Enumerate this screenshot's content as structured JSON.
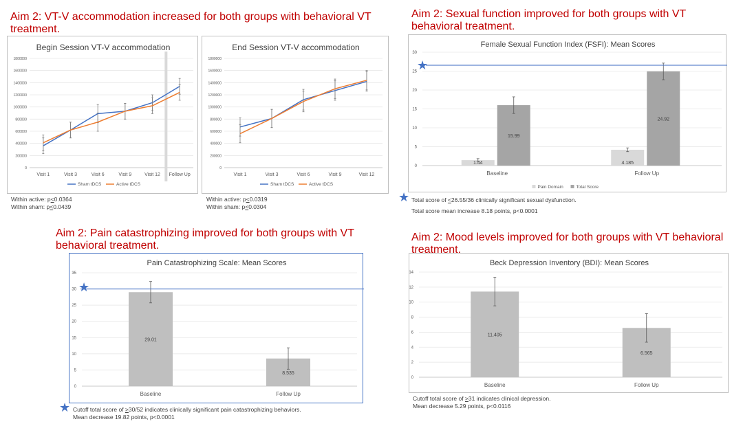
{
  "panels": {
    "vtv": {
      "heading": "Aim 2:   VT-V accommodation increased for both groups with behavioral VT treatment.",
      "notes": [
        {
          "prefix": "Within active:  p",
          "sym": "<",
          "suffix": "0.0364"
        },
        {
          "prefix": "Within sham:  p",
          "sym": "<",
          "suffix": "0.0439"
        },
        {
          "prefix": "Within active: p",
          "sym": "<",
          "suffix": "0.0319"
        },
        {
          "prefix": "Within sham:  p",
          "sym": "<",
          "suffix": "0.0304"
        }
      ]
    },
    "fsfi": {
      "heading": "Aim 2:  Sexual function improved for both groups with VT behavioral treatment.",
      "notes": [
        {
          "prefix": "Total score of ",
          "sym": "<",
          "suffix": "26.55/36 clinically significant sexual dysfunction."
        },
        {
          "prefix": "Total score mean increase 8.18 points, p<0.0001",
          "sym": "",
          "suffix": ""
        }
      ]
    },
    "pcs": {
      "heading": "Aim 2: Pain catastrophizing improved for both groups with VT behavioral treatment.",
      "notes": [
        {
          "prefix": "Cutoff total score of ",
          "sym": ">",
          "suffix": "30/52 indicates clinically significant pain catastrophizing behaviors."
        },
        {
          "prefix": "Mean decrease 19.82 points, p<0.0001",
          "sym": "",
          "suffix": ""
        }
      ]
    },
    "bdi": {
      "heading": "Aim 2:  Mood levels improved for both groups with VT behavioral treatment.",
      "notes": [
        {
          "prefix": "Cutoff total score of ",
          "sym": ">",
          "suffix": "31 indicates clinical depression."
        },
        {
          "prefix": "Mean decrease 5.29 points, p<0.0116",
          "sym": "",
          "suffix": ""
        }
      ]
    },
    "star_glyph": "★"
  },
  "colors": {
    "heading": "#c00000",
    "sham": "#4472c4",
    "active": "#ed7d31",
    "bar_dark": "#a5a5a5",
    "bar_light": "#d9d9d9",
    "ref_line": "#4472c4"
  },
  "chart_data": [
    {
      "id": "begin",
      "type": "line",
      "title": "Begin Session VT-V accommodation",
      "categories": [
        "Visit 1",
        "Visit 3",
        "Visit 6",
        "Visit 9",
        "Visit 12",
        "Follow Up"
      ],
      "ylim": [
        0,
        1800000
      ],
      "yticks": [
        "0",
        "200000",
        "400000",
        "600000",
        "800000",
        "1000000",
        "1200000",
        "1400000",
        "1600000",
        "1800000"
      ],
      "series": [
        {
          "name": "Sham tDCS",
          "values": [
            360000,
            620000,
            890000,
            930000,
            1070000,
            1340000
          ]
        },
        {
          "name": "Active tDCS",
          "values": [
            410000,
            620000,
            750000,
            930000,
            1020000,
            1240000
          ]
        }
      ],
      "error": [
        130000,
        130000,
        150000,
        130000,
        130000,
        130000
      ],
      "legend": "bottom",
      "grid": true
    },
    {
      "id": "end",
      "type": "line",
      "title": "End Session VT-V accommodation",
      "categories": [
        "Visit 1",
        "Visit 3",
        "Visit 6",
        "Visit 9",
        "Visit 12"
      ],
      "ylim": [
        0,
        1800000
      ],
      "yticks": [
        "0",
        "200000",
        "400000",
        "600000",
        "800000",
        "1000000",
        "1200000",
        "1400000",
        "1600000",
        "1800000"
      ],
      "series": [
        {
          "name": "Sham tDCS",
          "values": [
            670000,
            810000,
            1120000,
            1270000,
            1420000
          ]
        },
        {
          "name": "Active tDCS",
          "values": [
            560000,
            810000,
            1090000,
            1300000,
            1440000
          ]
        }
      ],
      "error": [
        150000,
        150000,
        170000,
        160000,
        160000
      ],
      "legend": "bottom",
      "grid": true
    },
    {
      "id": "fsfi",
      "type": "bar",
      "title": "Female Sexual Function Index (FSFI): Mean Scores",
      "categories": [
        "Baseline",
        "Follow Up"
      ],
      "ylim": [
        0,
        30
      ],
      "yticks": [
        "0",
        "5",
        "10",
        "15",
        "20",
        "25",
        "30"
      ],
      "series": [
        {
          "name": "Pain Domain",
          "values": [
            1.44,
            4.185
          ],
          "labels": [
            "1.44",
            "4.185"
          ],
          "error": [
            0.4,
            0.5
          ]
        },
        {
          "name": "Total Score",
          "values": [
            15.99,
            24.92
          ],
          "labels": [
            "15.99",
            "24.92"
          ],
          "error": [
            2.2,
            2.2
          ]
        }
      ],
      "reference": 26.55,
      "legend": "bottom",
      "grid": true
    },
    {
      "id": "pcs",
      "type": "bar",
      "title": "Pain Catastrophizing Scale: Mean Scores",
      "categories": [
        "Baseline",
        "Follow Up"
      ],
      "ylim": [
        0,
        35
      ],
      "yticks": [
        "0",
        "5",
        "10",
        "15",
        "20",
        "25",
        "30",
        "35"
      ],
      "series": [
        {
          "values": [
            29.01,
            8.535
          ],
          "labels": [
            "29.01",
            "8.535"
          ],
          "error": [
            3.3,
            3.3
          ]
        }
      ],
      "reference": 30,
      "grid": true
    },
    {
      "id": "bdi",
      "type": "bar",
      "title": "Beck Depression Inventory (BDI): Mean Scores",
      "categories": [
        "Baseline",
        "Follow Up"
      ],
      "ylim": [
        0,
        14
      ],
      "yticks": [
        "0",
        "2",
        "4",
        "6",
        "8",
        "10",
        "12",
        "14"
      ],
      "series": [
        {
          "values": [
            11.405,
            6.565
          ],
          "labels": [
            "11.405",
            "6.565"
          ],
          "error": [
            1.9,
            1.9
          ]
        }
      ],
      "grid": true
    }
  ]
}
